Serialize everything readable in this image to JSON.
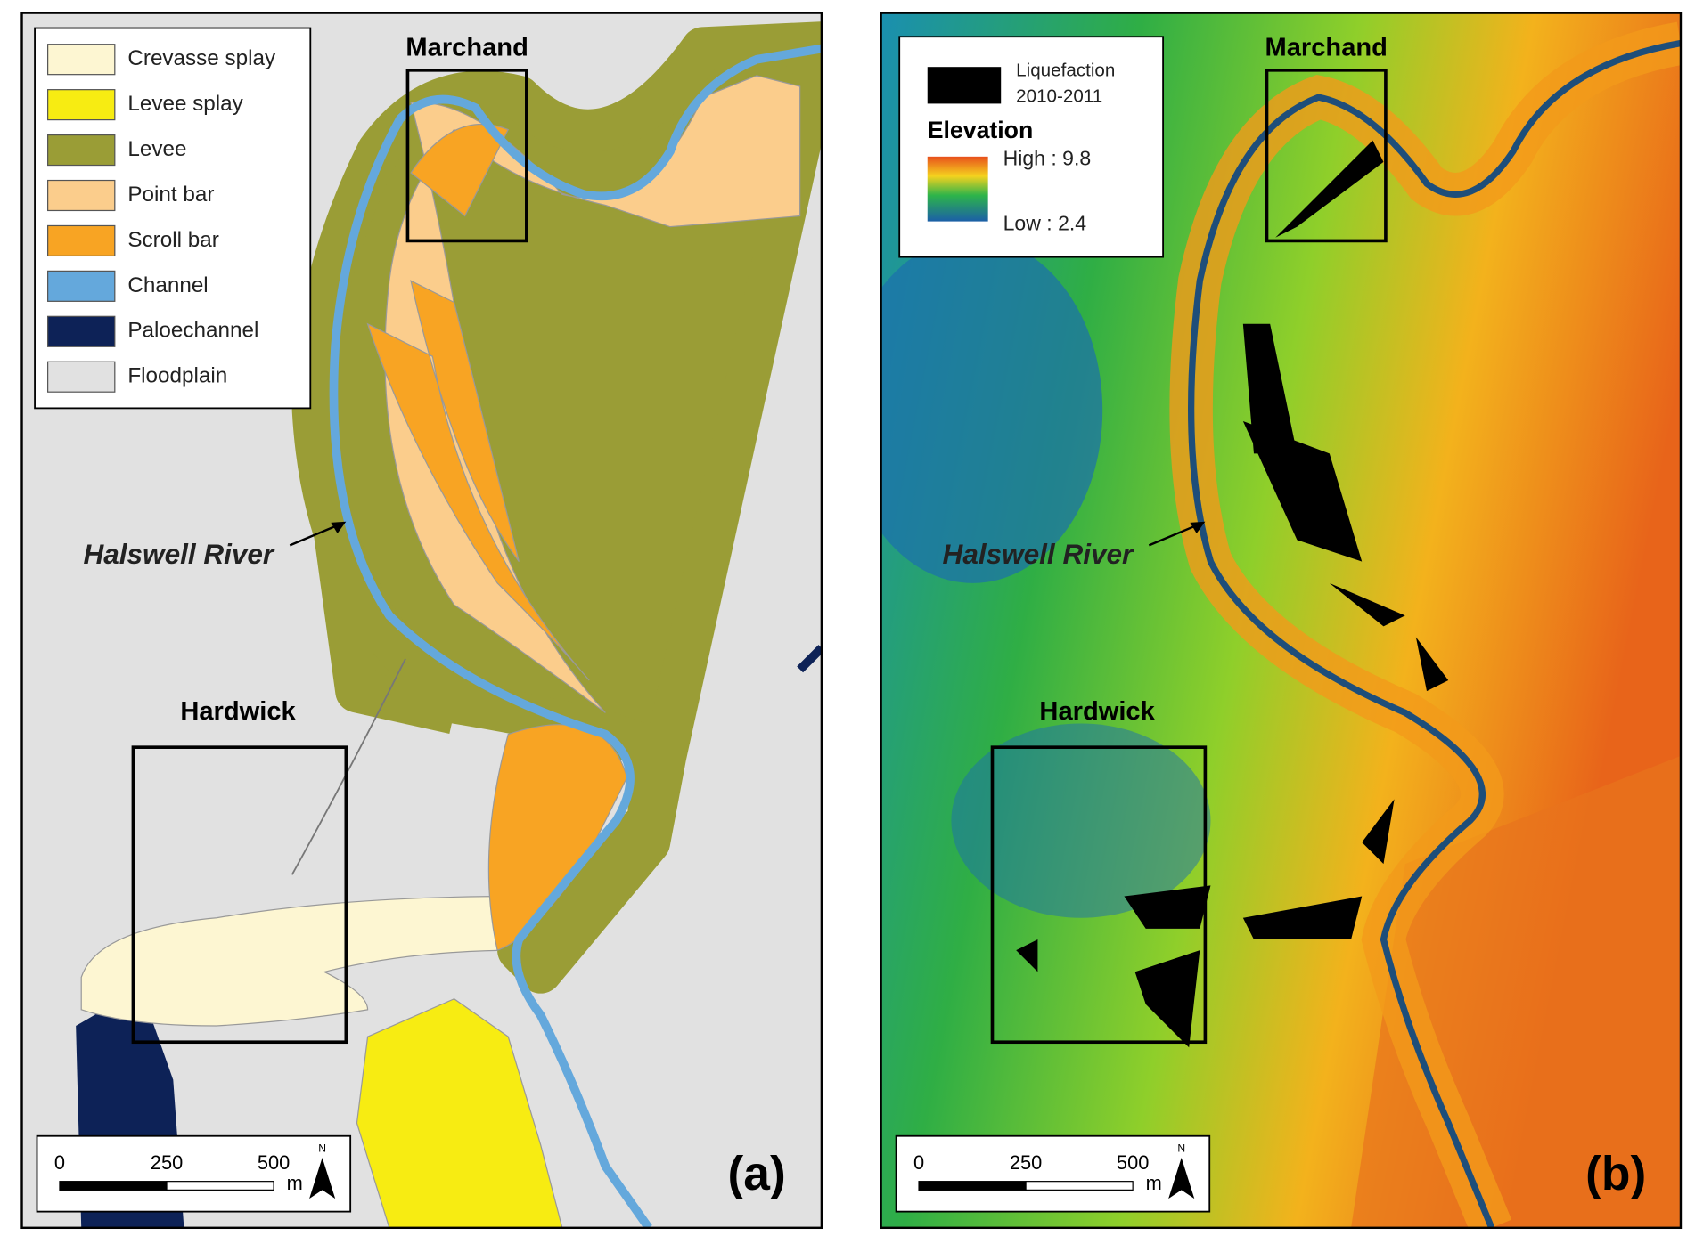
{
  "panels": [
    {
      "label": "(a)",
      "legend": [
        {
          "name": "Crevasse splay",
          "color": "#fdf6d2"
        },
        {
          "name": "Levee splay",
          "color": "#f7ec12"
        },
        {
          "name": "Levee",
          "color": "#9a9d36"
        },
        {
          "name": "Point bar",
          "color": "#fbcd8c"
        },
        {
          "name": "Scroll bar",
          "color": "#f8a423"
        },
        {
          "name": "Channel",
          "color": "#64a8dc"
        },
        {
          "name": "Paloechannel",
          "color": "#0d2257"
        },
        {
          "name": "Floodplain",
          "color": "#e1e1e1"
        }
      ],
      "sites": [
        "Marchand",
        "Hardwick"
      ],
      "river": "Halswell River",
      "scale": {
        "ticks": [
          0,
          250,
          500
        ],
        "unit": "m",
        "north": "N"
      }
    },
    {
      "label": "(b)",
      "legend": {
        "liquefaction": [
          "Liquefaction",
          "2010-2011"
        ],
        "elevation": "Elevation",
        "high": "High : 9.8",
        "low": "Low : 2.4"
      },
      "sites": [
        "Marchand",
        "Hardwick"
      ],
      "river": "Halswell River",
      "scale": {
        "ticks": [
          0,
          250,
          500
        ],
        "unit": "m",
        "north": "N"
      }
    }
  ]
}
